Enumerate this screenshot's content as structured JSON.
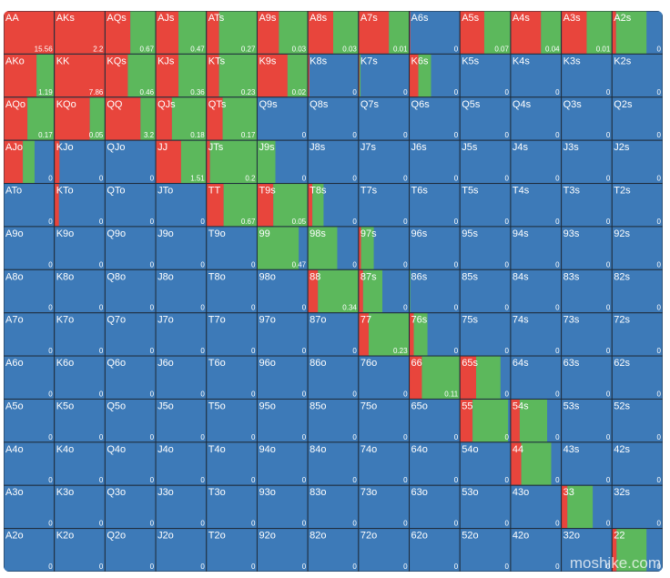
{
  "rows": [
    [
      [
        "AA",
        15.56,
        100,
        0
      ],
      [
        "AKs",
        2.2,
        100,
        0
      ],
      [
        "AQs",
        0.67,
        50,
        50
      ],
      [
        "AJs",
        0.47,
        45,
        55
      ],
      [
        "ATs",
        0.27,
        25,
        75
      ],
      [
        "A9s",
        0.03,
        43,
        57
      ],
      [
        "A8s",
        0.03,
        50,
        50
      ],
      [
        "A7s",
        0.01,
        60,
        40
      ],
      [
        "A6s",
        0,
        2,
        0
      ],
      [
        "A5s",
        0.07,
        48,
        52
      ],
      [
        "A4s",
        0.04,
        60,
        40
      ],
      [
        "A3s",
        0.01,
        50,
        50
      ],
      [
        "A2s",
        0,
        8,
        60
      ]
    ],
    [
      [
        "AKo",
        1.19,
        65,
        35
      ],
      [
        "KK",
        7.86,
        100,
        0
      ],
      [
        "KQs",
        0.46,
        45,
        55
      ],
      [
        "KJs",
        0.36,
        45,
        55
      ],
      [
        "KTs",
        0.23,
        25,
        75
      ],
      [
        "K9s",
        0.02,
        60,
        40
      ],
      [
        "K8s",
        0,
        3,
        0
      ],
      [
        "K7s",
        0,
        2,
        2
      ],
      [
        "K6s",
        0,
        18,
        25
      ],
      [
        "K5s",
        0,
        0,
        0
      ],
      [
        "K4s",
        0,
        0,
        0
      ],
      [
        "K3s",
        0,
        0,
        0
      ],
      [
        "K2s",
        0,
        0,
        0
      ]
    ],
    [
      [
        "AQo",
        0.17,
        47,
        53
      ],
      [
        "KQo",
        0.05,
        70,
        30
      ],
      [
        "QQ",
        3.2,
        70,
        30
      ],
      [
        "QJs",
        0.18,
        32,
        68
      ],
      [
        "QTs",
        0.17,
        32,
        68
      ],
      [
        "Q9s",
        0,
        0,
        0
      ],
      [
        "Q8s",
        0,
        0,
        0
      ],
      [
        "Q7s",
        0,
        0,
        0
      ],
      [
        "Q6s",
        0,
        0,
        0
      ],
      [
        "Q5s",
        0,
        0,
        0
      ],
      [
        "Q4s",
        0,
        0,
        0
      ],
      [
        "Q3s",
        0,
        0,
        0
      ],
      [
        "Q2s",
        0,
        0,
        0
      ]
    ],
    [
      [
        "AJo",
        0,
        38,
        23
      ],
      [
        "KJo",
        0,
        10,
        0
      ],
      [
        "QJo",
        0,
        0,
        0
      ],
      [
        "JJ",
        1.51,
        50,
        50
      ],
      [
        "JTs",
        0.2,
        7,
        93
      ],
      [
        "J9s",
        0,
        0,
        36
      ],
      [
        "J8s",
        0,
        0,
        0
      ],
      [
        "J7s",
        0,
        0,
        0
      ],
      [
        "J6s",
        0,
        0,
        0
      ],
      [
        "J5s",
        0,
        0,
        0
      ],
      [
        "J4s",
        0,
        0,
        0
      ],
      [
        "J3s",
        0,
        0,
        0
      ],
      [
        "J2s",
        0,
        0,
        0
      ]
    ],
    [
      [
        "ATo",
        0,
        0,
        0
      ],
      [
        "KTo",
        0,
        9,
        0
      ],
      [
        "QTo",
        0,
        0,
        0
      ],
      [
        "JTo",
        0,
        0,
        0
      ],
      [
        "TT",
        0.67,
        34,
        66
      ],
      [
        "T9s",
        0.05,
        32,
        68
      ],
      [
        "T8s",
        0,
        9,
        22
      ],
      [
        "T7s",
        0,
        0,
        0
      ],
      [
        "T6s",
        0,
        0,
        0
      ],
      [
        "T5s",
        0,
        0,
        0
      ],
      [
        "T4s",
        0,
        0,
        0
      ],
      [
        "T3s",
        0,
        0,
        0
      ],
      [
        "T2s",
        0,
        0,
        0
      ]
    ],
    [
      [
        "A9o",
        0,
        0,
        0
      ],
      [
        "K9o",
        0,
        0,
        0
      ],
      [
        "Q9o",
        0,
        0,
        0
      ],
      [
        "J9o",
        0,
        0,
        0
      ],
      [
        "T9o",
        0,
        0,
        0
      ],
      [
        "99",
        0.47,
        0,
        82
      ],
      [
        "98s",
        0,
        0,
        58
      ],
      [
        "97s",
        0,
        5,
        25
      ],
      [
        "96s",
        0,
        0,
        0
      ],
      [
        "95s",
        0,
        0,
        0
      ],
      [
        "94s",
        0,
        0,
        0
      ],
      [
        "93s",
        0,
        0,
        0
      ],
      [
        "92s",
        0,
        0,
        0
      ]
    ],
    [
      [
        "A8o",
        0,
        0,
        0
      ],
      [
        "K8o",
        0,
        0,
        0
      ],
      [
        "Q8o",
        0,
        0,
        0
      ],
      [
        "J8o",
        0,
        0,
        0
      ],
      [
        "T8o",
        0,
        0,
        0
      ],
      [
        "98o",
        0,
        0,
        0
      ],
      [
        "88",
        0.34,
        20,
        80
      ],
      [
        "87s",
        0,
        9,
        38
      ],
      [
        "86s",
        0,
        0,
        2
      ],
      [
        "85s",
        0,
        0,
        0
      ],
      [
        "84s",
        0,
        0,
        0
      ],
      [
        "83s",
        0,
        0,
        0
      ],
      [
        "82s",
        0,
        0,
        0
      ]
    ],
    [
      [
        "A7o",
        0,
        0,
        0
      ],
      [
        "K7o",
        0,
        0,
        0
      ],
      [
        "Q7o",
        0,
        0,
        0
      ],
      [
        "J7o",
        0,
        0,
        0
      ],
      [
        "T7o",
        0,
        0,
        0
      ],
      [
        "97o",
        0,
        0,
        0
      ],
      [
        "87o",
        0,
        0,
        0
      ],
      [
        "77",
        0.23,
        20,
        80
      ],
      [
        "76s",
        0,
        9,
        27
      ],
      [
        "75s",
        0,
        0,
        0
      ],
      [
        "74s",
        0,
        0,
        0
      ],
      [
        "73s",
        0,
        0,
        0
      ],
      [
        "72s",
        0,
        0,
        0
      ]
    ],
    [
      [
        "A6o",
        0,
        0,
        0
      ],
      [
        "K6o",
        0,
        0,
        0
      ],
      [
        "Q6o",
        0,
        0,
        0
      ],
      [
        "J6o",
        0,
        0,
        0
      ],
      [
        "T6o",
        0,
        0,
        0
      ],
      [
        "96o",
        0,
        0,
        0
      ],
      [
        "86o",
        0,
        0,
        0
      ],
      [
        "76o",
        0,
        0,
        0
      ],
      [
        "66",
        0.11,
        25,
        75
      ],
      [
        "65s",
        0,
        32,
        48
      ],
      [
        "64s",
        0,
        0,
        0
      ],
      [
        "63s",
        0,
        0,
        0
      ],
      [
        "62s",
        0,
        0,
        0
      ]
    ],
    [
      [
        "A5o",
        0,
        0,
        0
      ],
      [
        "K5o",
        0,
        0,
        0
      ],
      [
        "Q5o",
        0,
        0,
        0
      ],
      [
        "J5o",
        0,
        0,
        0
      ],
      [
        "T5o",
        0,
        0,
        0
      ],
      [
        "95o",
        0,
        0,
        0
      ],
      [
        "85o",
        0,
        0,
        0
      ],
      [
        "75o",
        0,
        0,
        0
      ],
      [
        "65o",
        0,
        0,
        0
      ],
      [
        "55",
        0,
        25,
        70
      ],
      [
        "54s",
        0,
        18,
        54
      ],
      [
        "53s",
        0,
        0,
        0
      ],
      [
        "52s",
        0,
        0,
        0
      ]
    ],
    [
      [
        "A4o",
        0,
        0,
        0
      ],
      [
        "K4o",
        0,
        0,
        0
      ],
      [
        "Q4o",
        0,
        0,
        0
      ],
      [
        "J4o",
        0,
        0,
        0
      ],
      [
        "T4o",
        0,
        0,
        0
      ],
      [
        "94o",
        0,
        0,
        0
      ],
      [
        "84o",
        0,
        0,
        0
      ],
      [
        "74o",
        0,
        0,
        0
      ],
      [
        "64o",
        0,
        0,
        0
      ],
      [
        "54o",
        0,
        0,
        0
      ],
      [
        "44",
        0,
        21,
        59
      ],
      [
        "43s",
        0,
        0,
        0
      ],
      [
        "42s",
        0,
        0,
        0
      ]
    ],
    [
      [
        "A3o",
        0,
        0,
        0
      ],
      [
        "K3o",
        0,
        0,
        0
      ],
      [
        "Q3o",
        0,
        0,
        0
      ],
      [
        "J3o",
        0,
        0,
        0
      ],
      [
        "T3o",
        0,
        0,
        0
      ],
      [
        "93o",
        0,
        0,
        0
      ],
      [
        "83o",
        0,
        0,
        0
      ],
      [
        "73o",
        0,
        0,
        0
      ],
      [
        "63o",
        0,
        0,
        0
      ],
      [
        "53o",
        0,
        0,
        0
      ],
      [
        "43o",
        0,
        0,
        0
      ],
      [
        "33",
        0,
        12,
        50
      ],
      [
        "32s",
        0,
        0,
        0
      ]
    ],
    [
      [
        "A2o",
        0,
        0,
        0
      ],
      [
        "K2o",
        0,
        0,
        0
      ],
      [
        "Q2o",
        0,
        0,
        0
      ],
      [
        "J2o",
        0,
        0,
        0
      ],
      [
        "T2o",
        0,
        0,
        0
      ],
      [
        "92o",
        0,
        0,
        0
      ],
      [
        "82o",
        0,
        0,
        0
      ],
      [
        "72o",
        0,
        0,
        0
      ],
      [
        "62o",
        0,
        0,
        0
      ],
      [
        "52o",
        0,
        0,
        0
      ],
      [
        "42o",
        0,
        0,
        0
      ],
      [
        "32o",
        0,
        0,
        0
      ],
      [
        "22",
        0,
        9,
        59
      ]
    ]
  ],
  "watermark": "moshike.com"
}
